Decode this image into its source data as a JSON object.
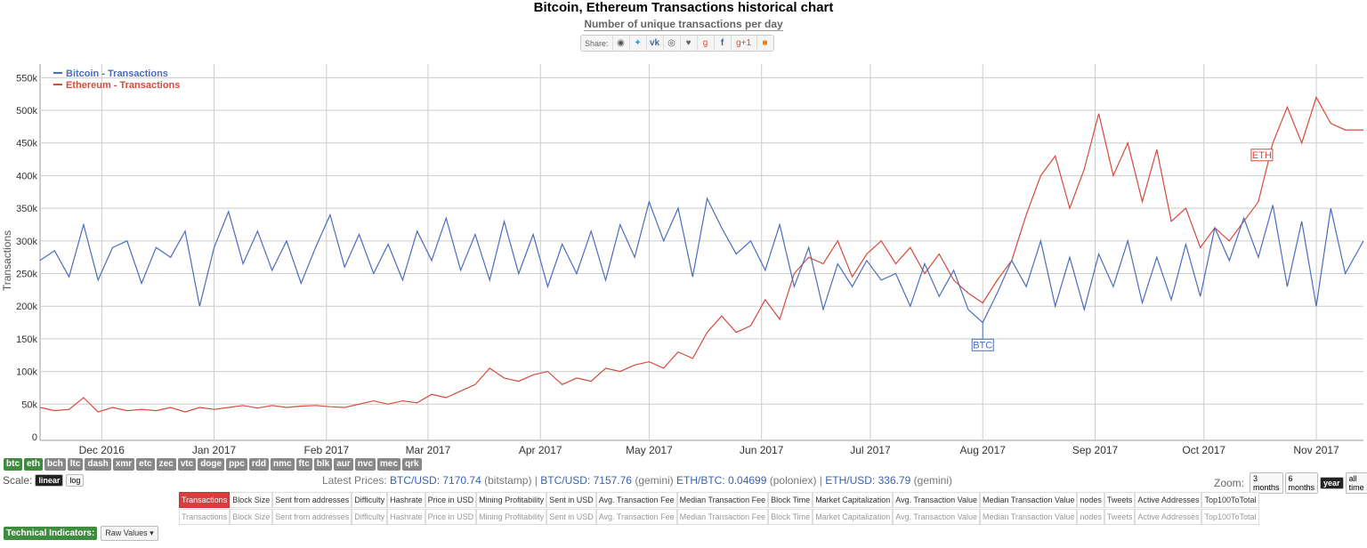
{
  "header": {
    "title": "Bitcoin, Ethereum Transactions historical chart",
    "subtitle": "Number of unique transactions per day",
    "share_label": "Share:",
    "share_icons": [
      "reddit-icon",
      "twitter-icon",
      "vk-icon",
      "weibo-icon",
      "like-icon",
      "google-plus-icon",
      "facebook-icon",
      "google-plus-one-icon",
      "blogger-icon"
    ]
  },
  "chart_data": {
    "type": "line",
    "title": "",
    "xlabel": "",
    "ylabel": "Transactions",
    "ylim": [
      0,
      560000
    ],
    "yticks": [
      0,
      50000,
      100000,
      150000,
      200000,
      250000,
      300000,
      350000,
      400000,
      450000,
      500000,
      550000
    ],
    "ytick_labels": [
      "0",
      "50k",
      "100k",
      "150k",
      "200k",
      "250k",
      "300k",
      "350k",
      "400k",
      "450k",
      "500k",
      "550k"
    ],
    "xticks": [
      "2016-12-01",
      "2017-01-01",
      "2017-02-01",
      "2017-03-01",
      "2017-04-01",
      "2017-05-01",
      "2017-06-01",
      "2017-07-01",
      "2017-08-01",
      "2017-09-01",
      "2017-10-01",
      "2017-11-01"
    ],
    "xtick_labels": [
      "Dec 2016",
      "Jan 2017",
      "Feb 2017",
      "Mar 2017",
      "Apr 2017",
      "May 2017",
      "Jun 2017",
      "Jul 2017",
      "Aug 2017",
      "Sep 2017",
      "Oct 2017",
      "Nov 2017"
    ],
    "xrange": [
      "2016-11-14",
      "2017-11-14"
    ],
    "grid": true,
    "legend_position": "top-left",
    "series": [
      {
        "name": "Bitcoin - Transactions",
        "color": "#4a6dbd",
        "annotation": "BTC",
        "annotation_date": "2017-08-01",
        "x": [
          "2016-11-14",
          "2016-11-18",
          "2016-11-22",
          "2016-11-26",
          "2016-11-30",
          "2016-12-04",
          "2016-12-08",
          "2016-12-12",
          "2016-12-16",
          "2016-12-20",
          "2016-12-24",
          "2016-12-28",
          "2017-01-01",
          "2017-01-05",
          "2017-01-09",
          "2017-01-13",
          "2017-01-17",
          "2017-01-21",
          "2017-01-25",
          "2017-01-29",
          "2017-02-02",
          "2017-02-06",
          "2017-02-10",
          "2017-02-14",
          "2017-02-18",
          "2017-02-22",
          "2017-02-26",
          "2017-03-02",
          "2017-03-06",
          "2017-03-10",
          "2017-03-14",
          "2017-03-18",
          "2017-03-22",
          "2017-03-26",
          "2017-03-30",
          "2017-04-03",
          "2017-04-07",
          "2017-04-11",
          "2017-04-15",
          "2017-04-19",
          "2017-04-23",
          "2017-04-27",
          "2017-05-01",
          "2017-05-05",
          "2017-05-09",
          "2017-05-13",
          "2017-05-17",
          "2017-05-21",
          "2017-05-25",
          "2017-05-29",
          "2017-06-02",
          "2017-06-06",
          "2017-06-10",
          "2017-06-14",
          "2017-06-18",
          "2017-06-22",
          "2017-06-26",
          "2017-06-30",
          "2017-07-04",
          "2017-07-08",
          "2017-07-12",
          "2017-07-16",
          "2017-07-20",
          "2017-07-24",
          "2017-07-28",
          "2017-08-01",
          "2017-08-05",
          "2017-08-09",
          "2017-08-13",
          "2017-08-17",
          "2017-08-21",
          "2017-08-25",
          "2017-08-29",
          "2017-09-02",
          "2017-09-06",
          "2017-09-10",
          "2017-09-14",
          "2017-09-18",
          "2017-09-22",
          "2017-09-26",
          "2017-09-30",
          "2017-10-04",
          "2017-10-08",
          "2017-10-12",
          "2017-10-16",
          "2017-10-20",
          "2017-10-24",
          "2017-10-28",
          "2017-11-01",
          "2017-11-05",
          "2017-11-09",
          "2017-11-14"
        ],
        "y": [
          270000,
          285000,
          245000,
          325000,
          240000,
          290000,
          300000,
          235000,
          290000,
          275000,
          315000,
          200000,
          290000,
          345000,
          265000,
          315000,
          255000,
          300000,
          235000,
          290000,
          340000,
          260000,
          310000,
          250000,
          295000,
          240000,
          315000,
          270000,
          335000,
          255000,
          310000,
          240000,
          330000,
          250000,
          310000,
          230000,
          295000,
          250000,
          315000,
          240000,
          325000,
          275000,
          360000,
          300000,
          350000,
          245000,
          365000,
          320000,
          280000,
          300000,
          255000,
          325000,
          230000,
          290000,
          195000,
          265000,
          230000,
          270000,
          240000,
          250000,
          200000,
          265000,
          215000,
          255000,
          195000,
          175000,
          220000,
          270000,
          230000,
          300000,
          200000,
          275000,
          195000,
          280000,
          230000,
          300000,
          205000,
          275000,
          210000,
          295000,
          215000,
          320000,
          270000,
          335000,
          275000,
          355000,
          230000,
          330000,
          200000,
          350000,
          250000,
          300000
        ]
      },
      {
        "name": "Ethereum - Transactions",
        "color": "#d64a3c",
        "annotation": "ETH",
        "annotation_date": "2017-10-17",
        "x": [
          "2016-11-14",
          "2016-11-18",
          "2016-11-22",
          "2016-11-26",
          "2016-11-30",
          "2016-12-04",
          "2016-12-08",
          "2016-12-12",
          "2016-12-16",
          "2016-12-20",
          "2016-12-24",
          "2016-12-28",
          "2017-01-01",
          "2017-01-05",
          "2017-01-09",
          "2017-01-13",
          "2017-01-17",
          "2017-01-21",
          "2017-01-25",
          "2017-01-29",
          "2017-02-02",
          "2017-02-06",
          "2017-02-10",
          "2017-02-14",
          "2017-02-18",
          "2017-02-22",
          "2017-02-26",
          "2017-03-02",
          "2017-03-06",
          "2017-03-10",
          "2017-03-14",
          "2017-03-18",
          "2017-03-22",
          "2017-03-26",
          "2017-03-30",
          "2017-04-03",
          "2017-04-07",
          "2017-04-11",
          "2017-04-15",
          "2017-04-19",
          "2017-04-23",
          "2017-04-27",
          "2017-05-01",
          "2017-05-05",
          "2017-05-09",
          "2017-05-13",
          "2017-05-17",
          "2017-05-21",
          "2017-05-25",
          "2017-05-29",
          "2017-06-02",
          "2017-06-06",
          "2017-06-10",
          "2017-06-14",
          "2017-06-18",
          "2017-06-22",
          "2017-06-26",
          "2017-06-30",
          "2017-07-04",
          "2017-07-08",
          "2017-07-12",
          "2017-07-16",
          "2017-07-20",
          "2017-07-24",
          "2017-07-28",
          "2017-08-01",
          "2017-08-05",
          "2017-08-09",
          "2017-08-13",
          "2017-08-17",
          "2017-08-21",
          "2017-08-25",
          "2017-08-29",
          "2017-09-02",
          "2017-09-06",
          "2017-09-10",
          "2017-09-14",
          "2017-09-18",
          "2017-09-22",
          "2017-09-26",
          "2017-09-30",
          "2017-10-04",
          "2017-10-08",
          "2017-10-12",
          "2017-10-16",
          "2017-10-20",
          "2017-10-24",
          "2017-10-28",
          "2017-11-01",
          "2017-11-05",
          "2017-11-09",
          "2017-11-14"
        ],
        "y": [
          45000,
          40000,
          42000,
          60000,
          38000,
          45000,
          40000,
          42000,
          40000,
          45000,
          38000,
          45000,
          42000,
          45000,
          48000,
          44000,
          48000,
          45000,
          47000,
          48000,
          46000,
          45000,
          50000,
          55000,
          50000,
          55000,
          52000,
          65000,
          60000,
          70000,
          80000,
          105000,
          90000,
          85000,
          95000,
          100000,
          80000,
          90000,
          85000,
          105000,
          100000,
          110000,
          115000,
          105000,
          130000,
          120000,
          160000,
          185000,
          160000,
          170000,
          210000,
          180000,
          250000,
          275000,
          265000,
          300000,
          245000,
          280000,
          300000,
          265000,
          290000,
          250000,
          280000,
          240000,
          220000,
          205000,
          240000,
          270000,
          340000,
          400000,
          430000,
          350000,
          410000,
          495000,
          400000,
          450000,
          360000,
          440000,
          330000,
          350000,
          290000,
          320000,
          300000,
          330000,
          360000,
          450000,
          505000,
          450000,
          520000,
          480000,
          470000,
          470000
        ]
      }
    ]
  },
  "coins": [
    "btc",
    "eth",
    "bch",
    "ltc",
    "dash",
    "xmr",
    "etc",
    "zec",
    "vtc",
    "doge",
    "ppc",
    "rdd",
    "nmc",
    "ftc",
    "blk",
    "aur",
    "nvc",
    "mec",
    "qrk"
  ],
  "coins_active": [
    "btc",
    "eth"
  ],
  "scale": {
    "label": "Scale:",
    "options": [
      "linear",
      "log"
    ],
    "selected": "linear"
  },
  "prices": {
    "label": "Latest Prices:",
    "p1": "BTC/USD: 7170.74",
    "p1s": "(bitstamp)",
    "sep": "|",
    "p2": "BTC/USD: 7157.76",
    "p2s": "(gemini)",
    "p3": "ETH/BTC: 0.04699",
    "p3s": "(poloniex)",
    "p4": "ETH/USD: 336.79",
    "p4s": "(gemini)"
  },
  "zoom": {
    "label": "Zoom:",
    "options": [
      "3 months",
      "6 months",
      "year",
      "all time"
    ],
    "selected": "year"
  },
  "metrics": [
    "Transactions",
    "Block Size",
    "Sent from addresses",
    "Difficulty",
    "Hashrate",
    "Price in USD",
    "Mining Profitability",
    "Sent in USD",
    "Avg. Transaction Fee",
    "Median Transaction Fee",
    "Block Time",
    "Market Capitalization",
    "Avg. Transaction Value",
    "Median Transaction Value",
    "nodes",
    "Tweets",
    "Active Addresses",
    "Top100ToTotal"
  ],
  "technical": {
    "label": "Technical Indicators:",
    "value": "Raw Values"
  }
}
